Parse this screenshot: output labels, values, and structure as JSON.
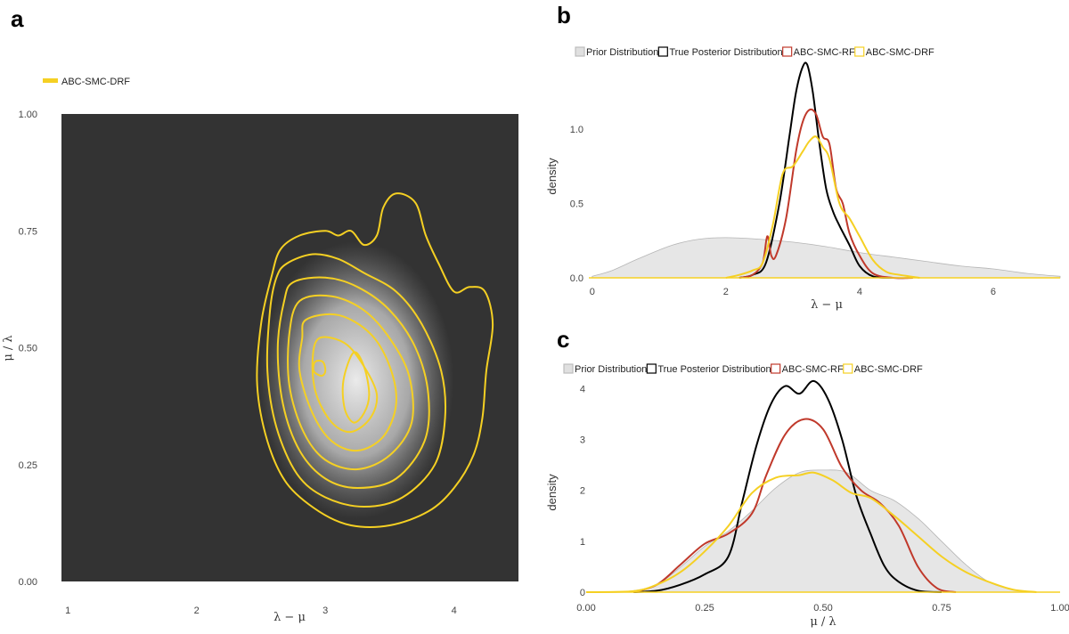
{
  "panels": {
    "a": "a",
    "b": "b",
    "c": "c"
  },
  "chart_data": [
    {
      "panel": "a",
      "type": "contour",
      "legend": [
        "ABC-SMC-DRF"
      ],
      "xlabel": "λ − μ",
      "ylabel": "μ / λ",
      "xlim": [
        0.95,
        4.5
      ],
      "ylim": [
        0,
        1
      ],
      "xticks": [
        1,
        2,
        3,
        4
      ],
      "yticks": [
        "0.00",
        "0.25",
        "0.50",
        "0.75",
        "1.00"
      ],
      "background": "#333333",
      "contour_color": "#f5d023",
      "series": [
        {
          "name": "ABC-SMC-DRF",
          "contours": [
            [
              [
                3.55,
                0.83
              ],
              [
                3.7,
                0.81
              ],
              [
                3.78,
                0.74
              ],
              [
                3.88,
                0.68
              ],
              [
                4.0,
                0.62
              ],
              [
                4.12,
                0.63
              ],
              [
                4.24,
                0.62
              ],
              [
                4.3,
                0.55
              ],
              [
                4.25,
                0.45
              ],
              [
                4.22,
                0.35
              ],
              [
                4.15,
                0.27
              ],
              [
                4.0,
                0.2
              ],
              [
                3.8,
                0.15
              ],
              [
                3.5,
                0.12
              ],
              [
                3.2,
                0.12
              ],
              [
                2.95,
                0.15
              ],
              [
                2.7,
                0.21
              ],
              [
                2.55,
                0.3
              ],
              [
                2.47,
                0.42
              ],
              [
                2.5,
                0.55
              ],
              [
                2.58,
                0.65
              ],
              [
                2.65,
                0.71
              ],
              [
                2.8,
                0.74
              ],
              [
                3.0,
                0.75
              ],
              [
                3.1,
                0.74
              ],
              [
                3.2,
                0.75
              ],
              [
                3.3,
                0.72
              ],
              [
                3.4,
                0.74
              ],
              [
                3.45,
                0.8
              ],
              [
                3.55,
                0.83
              ]
            ],
            [
              [
                2.7,
                0.68
              ],
              [
                2.9,
                0.7
              ],
              [
                3.1,
                0.69
              ],
              [
                3.3,
                0.66
              ],
              [
                3.55,
                0.62
              ],
              [
                3.75,
                0.55
              ],
              [
                3.9,
                0.45
              ],
              [
                3.93,
                0.35
              ],
              [
                3.85,
                0.25
              ],
              [
                3.6,
                0.18
              ],
              [
                3.3,
                0.16
              ],
              [
                3.0,
                0.18
              ],
              [
                2.78,
                0.23
              ],
              [
                2.62,
                0.33
              ],
              [
                2.55,
                0.45
              ],
              [
                2.57,
                0.58
              ],
              [
                2.62,
                0.65
              ],
              [
                2.7,
                0.68
              ]
            ],
            [
              [
                2.75,
                0.64
              ],
              [
                3.0,
                0.65
              ],
              [
                3.25,
                0.63
              ],
              [
                3.5,
                0.58
              ],
              [
                3.7,
                0.5
              ],
              [
                3.8,
                0.4
              ],
              [
                3.77,
                0.3
              ],
              [
                3.55,
                0.22
              ],
              [
                3.25,
                0.2
              ],
              [
                3.0,
                0.22
              ],
              [
                2.8,
                0.28
              ],
              [
                2.67,
                0.38
              ],
              [
                2.63,
                0.5
              ],
              [
                2.68,
                0.6
              ],
              [
                2.75,
                0.64
              ]
            ],
            [
              [
                2.8,
                0.6
              ],
              [
                3.05,
                0.61
              ],
              [
                3.3,
                0.58
              ],
              [
                3.5,
                0.52
              ],
              [
                3.65,
                0.44
              ],
              [
                3.67,
                0.34
              ],
              [
                3.5,
                0.27
              ],
              [
                3.25,
                0.24
              ],
              [
                3.0,
                0.26
              ],
              [
                2.83,
                0.32
              ],
              [
                2.72,
                0.42
              ],
              [
                2.72,
                0.53
              ],
              [
                2.8,
                0.6
              ]
            ],
            [
              [
                2.85,
                0.56
              ],
              [
                3.1,
                0.57
              ],
              [
                3.35,
                0.53
              ],
              [
                3.5,
                0.46
              ],
              [
                3.55,
                0.38
              ],
              [
                3.45,
                0.31
              ],
              [
                3.25,
                0.28
              ],
              [
                3.05,
                0.3
              ],
              [
                2.9,
                0.36
              ],
              [
                2.8,
                0.45
              ],
              [
                2.82,
                0.52
              ],
              [
                2.85,
                0.56
              ]
            ],
            [
              [
                2.95,
                0.52
              ],
              [
                3.15,
                0.51
              ],
              [
                3.3,
                0.46
              ],
              [
                3.4,
                0.4
              ],
              [
                3.35,
                0.35
              ],
              [
                3.2,
                0.32
              ],
              [
                3.05,
                0.34
              ],
              [
                2.93,
                0.4
              ],
              [
                2.9,
                0.47
              ],
              [
                2.95,
                0.52
              ]
            ],
            [
              [
                3.22,
                0.49
              ],
              [
                3.3,
                0.46
              ],
              [
                3.34,
                0.4
              ],
              [
                3.3,
                0.36
              ],
              [
                3.22,
                0.34
              ],
              [
                3.15,
                0.37
              ],
              [
                3.14,
                0.43
              ],
              [
                3.22,
                0.49
              ]
            ],
            [
              [
                2.92,
                0.47
              ],
              [
                2.98,
                0.47
              ],
              [
                3.0,
                0.45
              ],
              [
                2.97,
                0.44
              ],
              [
                2.91,
                0.45
              ],
              [
                2.92,
                0.47
              ]
            ]
          ]
        }
      ]
    },
    {
      "panel": "b",
      "type": "area",
      "legend": [
        "Prior Distribution",
        "True Posterior Distribution",
        "ABC-SMC-RF",
        "ABC-SMC-DRF"
      ],
      "xlabel": "λ − μ",
      "ylabel": "density",
      "xlim": [
        -0.05,
        7.0
      ],
      "ylim": [
        0,
        1.45
      ],
      "xticks": [
        "0",
        "2",
        "4",
        "6"
      ],
      "yticks": [
        "0.0",
        "0.5",
        "1.0"
      ],
      "series": [
        {
          "name": "Prior Distribution",
          "color": "#e6e6e6",
          "x": [
            0,
            0.3,
            0.7,
            1.2,
            1.6,
            2.0,
            2.5,
            3.0,
            3.5,
            4.0,
            4.5,
            5.0,
            5.5,
            6.0,
            6.5,
            7.0
          ],
          "y": [
            0.01,
            0.05,
            0.13,
            0.22,
            0.26,
            0.27,
            0.26,
            0.24,
            0.21,
            0.17,
            0.14,
            0.11,
            0.08,
            0.06,
            0.03,
            0.01
          ]
        },
        {
          "name": "True Posterior Distribution",
          "color": "#000000",
          "x": [
            2.2,
            2.4,
            2.6,
            2.8,
            2.95,
            3.05,
            3.15,
            3.22,
            3.3,
            3.4,
            3.5,
            3.6,
            3.7,
            3.85,
            4.0,
            4.2,
            4.5
          ],
          "y": [
            0.0,
            0.02,
            0.1,
            0.5,
            0.95,
            1.25,
            1.42,
            1.43,
            1.25,
            0.9,
            0.6,
            0.45,
            0.35,
            0.22,
            0.08,
            0.01,
            0.0
          ]
        },
        {
          "name": "ABC-SMC-RF",
          "color": "#c0392b",
          "x": [
            2.2,
            2.4,
            2.55,
            2.62,
            2.68,
            2.75,
            2.9,
            3.05,
            3.15,
            3.25,
            3.35,
            3.45,
            3.55,
            3.65,
            3.75,
            3.85,
            4.0,
            4.2,
            4.5,
            4.8
          ],
          "y": [
            0.0,
            0.02,
            0.1,
            0.28,
            0.15,
            0.15,
            0.4,
            0.85,
            1.05,
            1.13,
            1.1,
            0.95,
            0.9,
            0.6,
            0.5,
            0.3,
            0.15,
            0.03,
            0.0,
            0.0
          ]
        },
        {
          "name": "ABC-SMC-DRF",
          "color": "#f5d023",
          "x": [
            2.0,
            2.2,
            2.4,
            2.55,
            2.7,
            2.85,
            3.0,
            3.15,
            3.25,
            3.35,
            3.45,
            3.55,
            3.7,
            3.85,
            4.0,
            4.2,
            4.4,
            4.6,
            4.9
          ],
          "y": [
            0.0,
            0.02,
            0.05,
            0.1,
            0.35,
            0.7,
            0.75,
            0.85,
            0.92,
            0.95,
            0.88,
            0.8,
            0.5,
            0.4,
            0.28,
            0.12,
            0.04,
            0.02,
            0.0
          ]
        }
      ]
    },
    {
      "panel": "c",
      "type": "area",
      "legend": [
        "Prior Distribution",
        "True Posterior Distribution",
        "ABC-SMC-RF",
        "ABC-SMC-DRF"
      ],
      "xlabel": "μ / λ",
      "ylabel": "density",
      "xlim": [
        0,
        1
      ],
      "ylim": [
        0,
        4.2
      ],
      "xticks": [
        "0.00",
        "0.25",
        "0.50",
        "0.75",
        "1.00"
      ],
      "yticks": [
        "0",
        "1",
        "2",
        "3",
        "4"
      ],
      "series": [
        {
          "name": "Prior Distribution",
          "color": "#e6e6e6",
          "x": [
            0.05,
            0.1,
            0.15,
            0.2,
            0.25,
            0.3,
            0.35,
            0.4,
            0.45,
            0.5,
            0.55,
            0.6,
            0.65,
            0.7,
            0.75,
            0.8,
            0.85,
            0.9,
            0.95
          ],
          "y": [
            0.0,
            0.03,
            0.15,
            0.5,
            0.9,
            1.2,
            1.6,
            2.05,
            2.35,
            2.4,
            2.35,
            2.0,
            1.8,
            1.45,
            1.0,
            0.55,
            0.2,
            0.05,
            0.0
          ]
        },
        {
          "name": "True Posterior Distribution",
          "color": "#000000",
          "x": [
            0.1,
            0.15,
            0.2,
            0.25,
            0.3,
            0.33,
            0.36,
            0.39,
            0.42,
            0.45,
            0.48,
            0.51,
            0.54,
            0.57,
            0.6,
            0.63,
            0.66,
            0.7,
            0.75
          ],
          "y": [
            0.0,
            0.03,
            0.15,
            0.35,
            0.7,
            1.8,
            2.9,
            3.7,
            4.05,
            3.9,
            4.15,
            3.8,
            3.0,
            1.9,
            1.15,
            0.5,
            0.2,
            0.03,
            0.0
          ]
        },
        {
          "name": "ABC-SMC-RF",
          "color": "#c0392b",
          "x": [
            0.1,
            0.15,
            0.2,
            0.25,
            0.3,
            0.35,
            0.38,
            0.42,
            0.46,
            0.5,
            0.54,
            0.58,
            0.62,
            0.66,
            0.7,
            0.74,
            0.78
          ],
          "y": [
            0.0,
            0.15,
            0.55,
            0.95,
            1.15,
            1.55,
            2.3,
            3.1,
            3.4,
            3.2,
            2.45,
            2.0,
            1.75,
            1.3,
            0.5,
            0.08,
            0.0
          ]
        },
        {
          "name": "ABC-SMC-DRF",
          "color": "#f5d023",
          "x": [
            0.0,
            0.1,
            0.15,
            0.2,
            0.25,
            0.3,
            0.35,
            0.4,
            0.45,
            0.48,
            0.52,
            0.56,
            0.6,
            0.65,
            0.7,
            0.75,
            0.8,
            0.85,
            0.9,
            0.95
          ],
          "y": [
            0.0,
            0.02,
            0.15,
            0.4,
            0.8,
            1.3,
            1.95,
            2.25,
            2.3,
            2.35,
            2.2,
            1.95,
            1.85,
            1.5,
            1.1,
            0.7,
            0.4,
            0.2,
            0.05,
            0.0
          ]
        }
      ]
    }
  ]
}
